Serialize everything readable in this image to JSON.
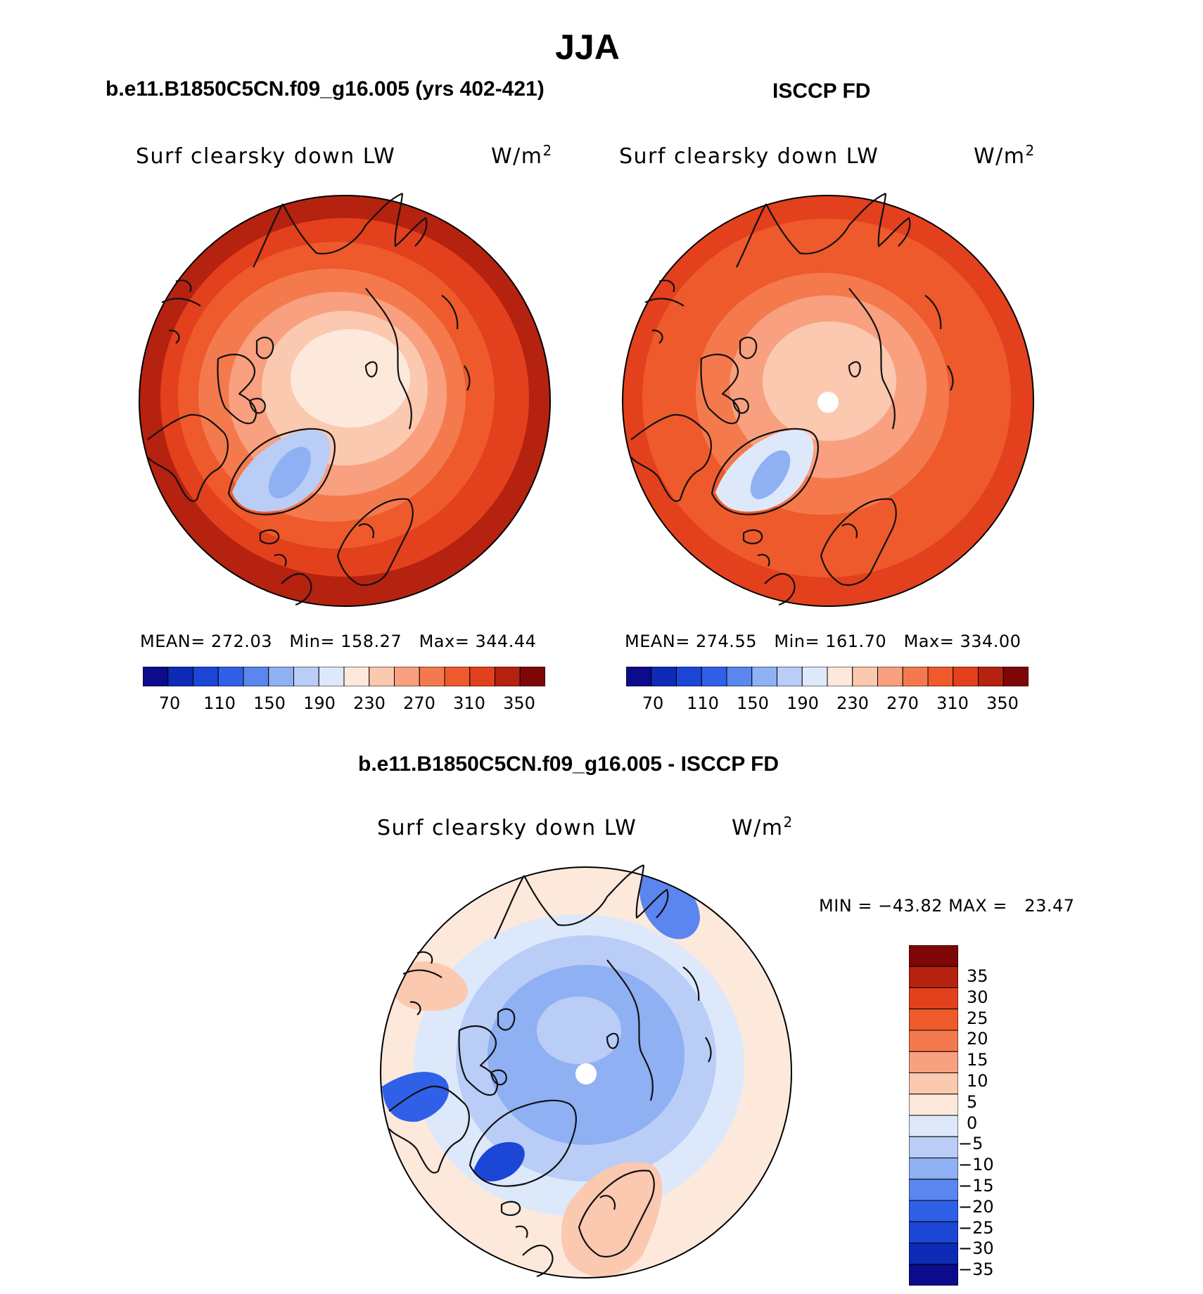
{
  "page": {
    "title": "JJA"
  },
  "colors": {
    "abs_scale": [
      "#0b0b8c",
      "#0d2bb5",
      "#1b46d6",
      "#3060e8",
      "#5b86ef",
      "#8fb0f3",
      "#b9cdf7",
      "#dde8fb",
      "#fde9dc",
      "#fbc8b0",
      "#f8a07f",
      "#f47a4e",
      "#ee5a2c",
      "#e3401d",
      "#b5220f",
      "#7f0606"
    ],
    "diff_scale": [
      "#0b0b8c",
      "#0d2bb5",
      "#1b46d6",
      "#3060e8",
      "#5b86ef",
      "#8fb0f3",
      "#b9cdf7",
      "#dde8fb",
      "#fde9dc",
      "#fbc8b0",
      "#f8a07f",
      "#f47a4e",
      "#ee5a2c",
      "#e3401d",
      "#b5220f",
      "#7f0606"
    ],
    "coastline": "#111111"
  },
  "panels": [
    {
      "title": "b.e11.B1850C5CN.f09_g16.005 (yrs 402-421)",
      "variable": "Surf clearsky down LW",
      "units_base": "W/m",
      "units_sup": "2",
      "stats": {
        "mean_label": "MEAN=",
        "mean": "272.03",
        "min_label": "Min=",
        "min": "158.27",
        "max_label": "Max=",
        "max": "344.44"
      },
      "colorbar_ticks": [
        "70",
        "110",
        "150",
        "190",
        "230",
        "270",
        "310",
        "350"
      ],
      "field_bands": [
        {
          "value": 330,
          "note": "outer ring"
        },
        {
          "value": 310
        },
        {
          "value": 295
        },
        {
          "value": 280
        },
        {
          "value": 262
        },
        {
          "value": 240
        },
        {
          "value": 222
        },
        {
          "value": 185,
          "note": "greenland"
        },
        {
          "value": 165,
          "note": "greenland core"
        }
      ]
    },
    {
      "title": "ISCCP FD",
      "variable": "Surf clearsky down LW",
      "units_base": "W/m",
      "units_sup": "2",
      "stats": {
        "mean_label": "MEAN=",
        "mean": "274.55",
        "min_label": "Min=",
        "min": "161.70",
        "max_label": "Max=",
        "max": "334.00"
      },
      "colorbar_ticks": [
        "70",
        "110",
        "150",
        "190",
        "230",
        "270",
        "310",
        "350"
      ],
      "field_bands": [
        {
          "value": 325
        },
        {
          "value": 308
        },
        {
          "value": 292
        },
        {
          "value": 275
        },
        {
          "value": 255
        },
        {
          "value": 238
        },
        {
          "value": 190,
          "note": "greenland"
        },
        {
          "value": 168,
          "note": "greenland core"
        }
      ]
    }
  ],
  "difference": {
    "title": "b.e11.B1850C5CN.f09_g16.005 - ISCCP FD",
    "variable": "Surf clearsky down LW",
    "units_base": "W/m",
    "units_sup": "2",
    "stats": {
      "min_label": "MIN =",
      "min": "−43.82",
      "max_label": "MAX =",
      "max": "23.47"
    },
    "colorbar_ticks": [
      "35",
      "30",
      "25",
      "20",
      "15",
      "10",
      "5",
      "0",
      "−5",
      "−10",
      "−15",
      "−20",
      "−25",
      "−30",
      "−35"
    ],
    "field_bands": [
      {
        "value": 3,
        "note": "outer ring"
      },
      {
        "value": -2
      },
      {
        "value": -8
      },
      {
        "value": -12,
        "note": "arctic ocean"
      },
      {
        "value": -7,
        "note": "pole"
      },
      {
        "value": -22,
        "note": "canada"
      },
      {
        "value": -28,
        "note": "greenland"
      },
      {
        "value": 7,
        "note": "scandinavia"
      },
      {
        "value": 9,
        "note": "siberia"
      },
      {
        "value": -20,
        "note": "east siberia"
      }
    ]
  }
}
